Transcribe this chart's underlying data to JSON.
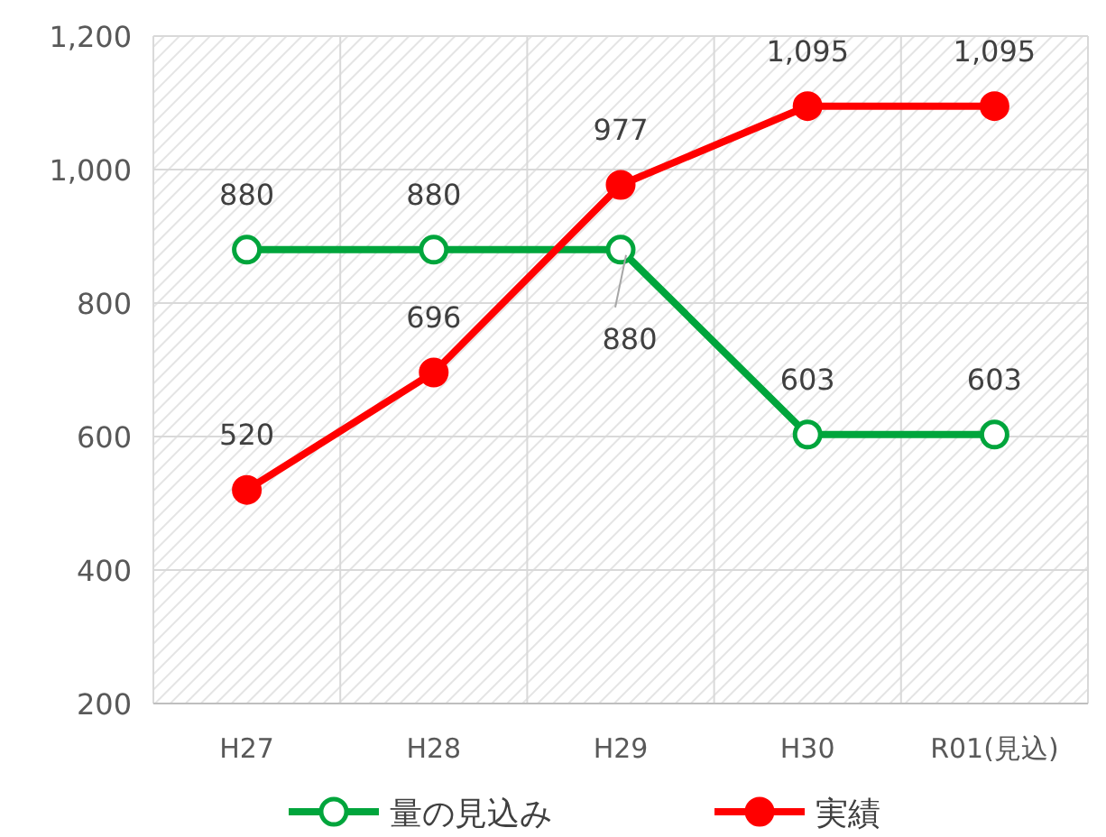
{
  "chart_data": {
    "type": "line",
    "categories": [
      "H27",
      "H28",
      "H29",
      "H30",
      "R01(見込)"
    ],
    "series": [
      {
        "name": "量の見込み",
        "color": "#00a53c",
        "values": [
          880,
          880,
          880,
          603,
          603
        ],
        "value_labels": [
          "880",
          "880",
          "880",
          "603",
          "603"
        ]
      },
      {
        "name": "実績",
        "color": "#ff0000",
        "values": [
          520,
          696,
          977,
          1095,
          1095
        ],
        "value_labels": [
          "520",
          "696",
          "977",
          "1,095",
          "1,095"
        ]
      }
    ],
    "ylim": [
      200,
      1200
    ],
    "yticks": [
      {
        "value": 200,
        "label": "200"
      },
      {
        "value": 400,
        "label": "400"
      },
      {
        "value": 600,
        "label": "600"
      },
      {
        "value": 800,
        "label": "800"
      },
      {
        "value": 1000,
        "label": "1,000"
      },
      {
        "value": 1200,
        "label": "1,200"
      }
    ],
    "grid": true,
    "legend": "bottom",
    "marker": "circle",
    "line_style": "solid"
  }
}
